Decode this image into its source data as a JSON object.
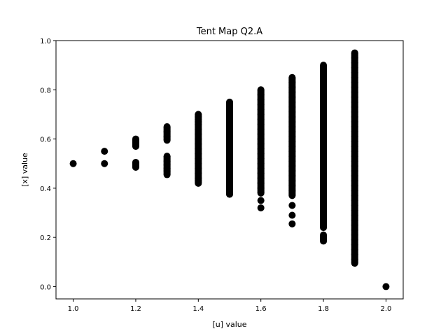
{
  "chart_data": {
    "type": "scatter",
    "title": "Tent Map Q2.A",
    "xlabel": "[u] value",
    "ylabel": "[x] value",
    "xlim": [
      0.945,
      2.055
    ],
    "ylim": [
      -0.05,
      1.0
    ],
    "xticks": [
      1.0,
      1.2,
      1.4,
      1.6,
      1.8,
      2.0
    ],
    "yticks": [
      0.0,
      0.2,
      0.4,
      0.6,
      0.8,
      1.0
    ],
    "xtick_labels": [
      "1.0",
      "1.2",
      "1.4",
      "1.6",
      "1.8",
      "2.0"
    ],
    "ytick_labels": [
      "0.0",
      "0.2",
      "0.4",
      "0.6",
      "0.8",
      "1.0"
    ],
    "marker_color": "#000000",
    "grid": false,
    "series": [
      {
        "x": [
          1.0,
          1.1,
          1.1,
          1.2,
          1.2,
          1.2,
          1.2,
          1.2,
          1.3,
          1.3,
          1.3,
          1.3,
          1.3,
          1.3,
          1.3,
          1.3,
          1.3,
          1.3,
          1.4,
          1.4,
          1.4,
          1.4,
          1.4,
          1.4,
          1.4,
          1.4,
          1.4,
          1.4,
          1.4,
          1.4,
          1.4,
          1.4,
          1.4,
          1.4,
          1.4,
          1.4,
          1.5,
          1.5,
          1.5,
          1.5,
          1.5,
          1.5,
          1.5,
          1.5,
          1.5,
          1.5,
          1.5,
          1.5,
          1.5,
          1.5,
          1.5,
          1.5,
          1.5,
          1.5,
          1.5,
          1.5,
          1.6,
          1.6,
          1.6,
          1.6,
          1.6,
          1.6,
          1.6,
          1.6,
          1.6,
          1.6,
          1.6,
          1.6,
          1.6,
          1.6,
          1.6,
          1.6,
          1.6,
          1.6,
          1.6,
          1.6,
          1.6,
          1.6,
          1.6,
          1.6,
          1.7,
          1.7,
          1.7,
          1.7,
          1.7,
          1.7,
          1.7,
          1.7,
          1.7,
          1.7,
          1.7,
          1.7,
          1.7,
          1.7,
          1.7,
          1.7,
          1.7,
          1.7,
          1.7,
          1.7,
          1.7,
          1.7,
          1.7,
          1.7,
          1.7,
          1.7,
          1.7,
          1.7,
          1.8,
          1.8,
          1.8,
          1.8,
          1.8,
          1.8,
          1.8,
          1.8,
          1.8,
          1.8,
          1.8,
          1.8,
          1.8,
          1.8,
          1.8,
          1.8,
          1.8,
          1.8,
          1.8,
          1.8,
          1.8,
          1.8,
          1.8,
          1.8,
          1.8,
          1.8,
          1.8,
          1.8,
          1.8,
          1.8,
          1.8,
          1.8,
          1.8,
          1.8,
          1.8,
          1.8,
          1.9,
          1.9,
          1.9,
          1.9,
          1.9,
          1.9,
          1.9,
          1.9,
          1.9,
          1.9,
          1.9,
          1.9,
          1.9,
          1.9,
          1.9,
          1.9,
          1.9,
          1.9,
          1.9,
          1.9,
          1.9,
          1.9,
          1.9,
          1.9,
          1.9,
          1.9,
          1.9,
          1.9,
          1.9,
          1.9,
          1.9,
          1.9,
          1.9,
          1.9,
          1.9,
          1.9,
          1.9,
          1.9,
          1.9,
          1.9,
          1.9,
          1.9,
          1.9,
          1.9,
          2.0
        ],
        "y": [
          0.5,
          0.55,
          0.5,
          0.6,
          0.585,
          0.57,
          0.505,
          0.485,
          0.65,
          0.63,
          0.61,
          0.595,
          0.53,
          0.51,
          0.495,
          0.48,
          0.47,
          0.455,
          0.7,
          0.68,
          0.66,
          0.64,
          0.62,
          0.6,
          0.58,
          0.56,
          0.54,
          0.52,
          0.5,
          0.48,
          0.46,
          0.44,
          0.43,
          0.42,
          0.69,
          0.67,
          0.75,
          0.73,
          0.71,
          0.69,
          0.67,
          0.65,
          0.63,
          0.61,
          0.59,
          0.57,
          0.55,
          0.53,
          0.51,
          0.49,
          0.47,
          0.45,
          0.43,
          0.41,
          0.39,
          0.375,
          0.8,
          0.78,
          0.76,
          0.74,
          0.72,
          0.7,
          0.68,
          0.66,
          0.64,
          0.62,
          0.6,
          0.58,
          0.56,
          0.54,
          0.52,
          0.5,
          0.48,
          0.46,
          0.44,
          0.42,
          0.4,
          0.38,
          0.35,
          0.32,
          0.85,
          0.83,
          0.81,
          0.79,
          0.77,
          0.75,
          0.73,
          0.71,
          0.69,
          0.67,
          0.65,
          0.63,
          0.61,
          0.59,
          0.57,
          0.55,
          0.53,
          0.51,
          0.49,
          0.47,
          0.45,
          0.43,
          0.41,
          0.39,
          0.37,
          0.33,
          0.29,
          0.255,
          0.9,
          0.88,
          0.86,
          0.84,
          0.82,
          0.8,
          0.78,
          0.76,
          0.74,
          0.72,
          0.7,
          0.68,
          0.66,
          0.64,
          0.62,
          0.6,
          0.58,
          0.56,
          0.54,
          0.52,
          0.5,
          0.48,
          0.46,
          0.44,
          0.42,
          0.4,
          0.38,
          0.36,
          0.34,
          0.32,
          0.3,
          0.28,
          0.26,
          0.24,
          0.21,
          0.185,
          0.95,
          0.93,
          0.91,
          0.89,
          0.87,
          0.85,
          0.83,
          0.81,
          0.79,
          0.77,
          0.75,
          0.73,
          0.71,
          0.69,
          0.67,
          0.65,
          0.63,
          0.61,
          0.59,
          0.57,
          0.55,
          0.53,
          0.51,
          0.49,
          0.47,
          0.45,
          0.43,
          0.41,
          0.39,
          0.37,
          0.35,
          0.33,
          0.31,
          0.29,
          0.27,
          0.25,
          0.23,
          0.21,
          0.19,
          0.17,
          0.15,
          0.13,
          0.11,
          0.095,
          0.0
        ]
      }
    ]
  }
}
